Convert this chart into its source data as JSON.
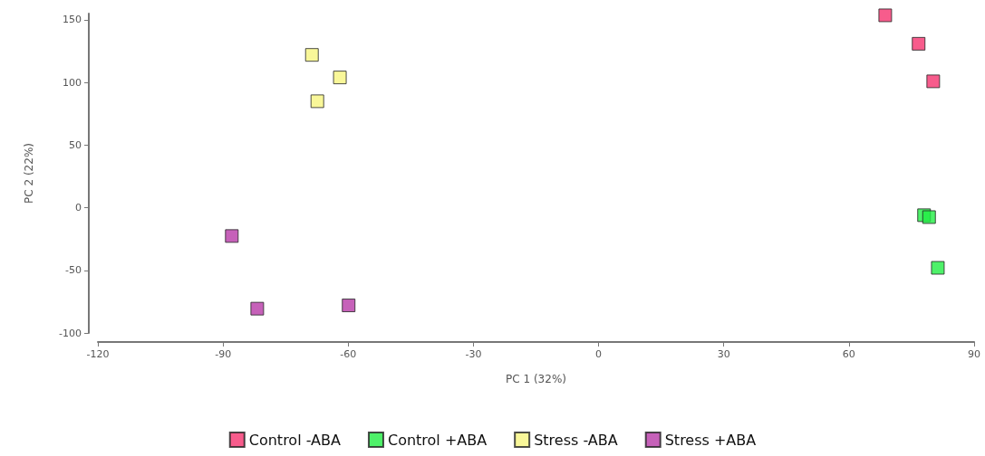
{
  "chart_data": {
    "type": "scatter",
    "xlabel": "PC 1 (32%)",
    "ylabel": "PC 2 (22%)",
    "xlim": [
      -120,
      90
    ],
    "xticks": [
      -120,
      -90,
      -60,
      -30,
      0,
      30,
      60,
      90
    ],
    "ylim": [
      -100,
      155
    ],
    "yticks": [
      -100,
      -50,
      0,
      50,
      100,
      150
    ],
    "grid": false,
    "legend": "bottom",
    "marker": "square",
    "series": [
      {
        "name": "Control -ABA",
        "color": "#f5336f",
        "x": [
          68.7,
          76.7,
          80.2
        ],
        "values": [
          153.6,
          130.9,
          100.9
        ]
      },
      {
        "name": "Control +ABA",
        "color": "#22ee44",
        "x": [
          78,
          79.2,
          81.3
        ],
        "values": [
          -6,
          -7.5,
          -48
        ]
      },
      {
        "name": "Stress -ABA",
        "color": "#f8f580",
        "x": [
          -68.7,
          -62,
          -67.4
        ],
        "values": [
          122,
          104,
          85
        ]
      },
      {
        "name": "Stress +ABA",
        "color": "#b83aa8",
        "x": [
          -87.9,
          -81.8,
          -59.9
        ],
        "values": [
          -22.6,
          -80.6,
          -78
        ]
      }
    ]
  }
}
